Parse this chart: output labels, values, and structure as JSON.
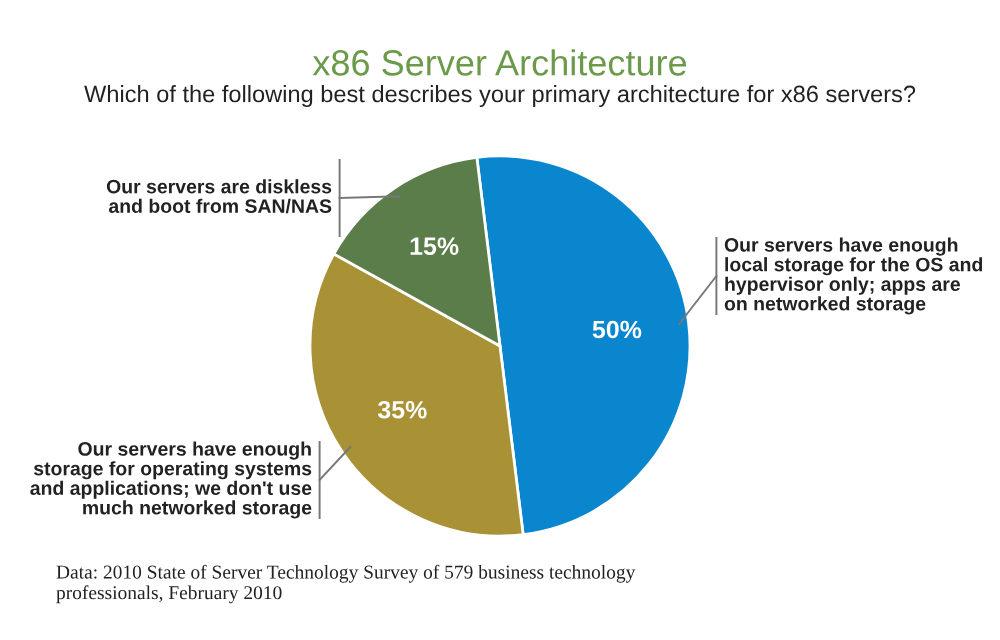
{
  "chart_data": {
    "type": "pie",
    "title": "x86 Server Architecture",
    "subtitle": "Which of the following best describes your primary architecture for x86 servers?",
    "categories": [
      "Our servers have enough\nlocal storage for the OS and\nhypervisor only; apps are\non networked storage",
      "Our servers have enough\nstorage for operating systems\nand applications; we don't use\nmuch networked storage",
      "Our servers are diskless\nand boot from SAN/NAS"
    ],
    "values": [
      50,
      35,
      15
    ],
    "colors": [
      "#0a86cf",
      "#a99235",
      "#5a7d4a"
    ],
    "value_labels": [
      "50%",
      "35%",
      "15%"
    ],
    "annotations": [
      "Data: 2010 State of Server Technology Survey of 579 business technology\nprofessionals, February 2010"
    ]
  }
}
